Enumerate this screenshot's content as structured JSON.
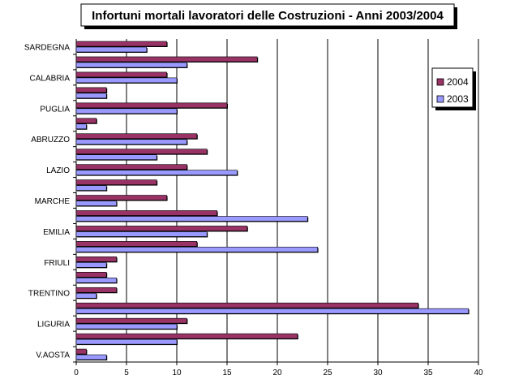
{
  "chart_data": {
    "type": "bar",
    "orientation": "horizontal",
    "title": "Infortuni mortali lavoratori delle Costruzioni - Anni 2003/2004",
    "xlim": [
      0,
      40
    ],
    "x_ticks": [
      "0",
      "5",
      "10",
      "15",
      "20",
      "25",
      "30",
      "35",
      "40"
    ],
    "grid": "vertical",
    "legend_position": "right",
    "categories": [
      "V.AOSTA",
      "",
      "LIGURIA",
      "",
      "TRENTINO",
      "",
      "FRIULI",
      "",
      "EMILIA",
      "",
      "MARCHE",
      "",
      "LAZIO",
      "",
      "ABRUZZO",
      "",
      "PUGLIA",
      "",
      "CALABRIA",
      "",
      "SARDEGNA"
    ],
    "series": [
      {
        "name": "2004",
        "color": "#993366",
        "values": [
          1,
          22,
          11,
          34,
          4,
          3,
          4,
          12,
          17,
          14,
          9,
          8,
          11,
          13,
          12,
          2,
          15,
          3,
          9,
          18,
          9
        ]
      },
      {
        "name": "2003",
        "color": "#9999ff",
        "values": [
          3,
          10,
          10,
          39,
          2,
          4,
          3,
          24,
          13,
          23,
          4,
          3,
          16,
          8,
          11,
          1,
          10,
          3,
          10,
          11,
          7
        ]
      }
    ]
  }
}
